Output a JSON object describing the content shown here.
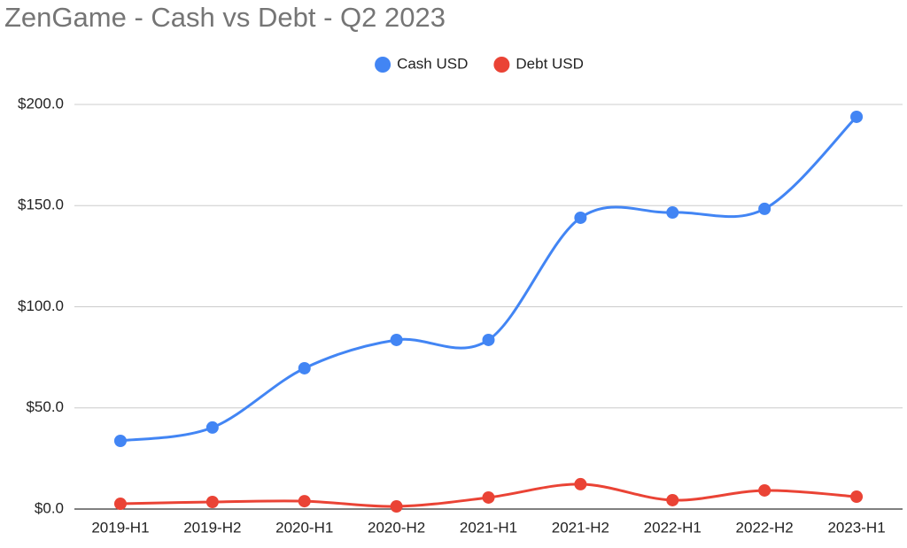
{
  "chart_data": {
    "type": "line",
    "title": "ZenGame  - Cash vs Debt - Q2 2023",
    "categories": [
      "2019-H1",
      "2019-H2",
      "2020-H1",
      "2020-H2",
      "2021-H1",
      "2021-H2",
      "2022-H1",
      "2022-H2",
      "2023-H1"
    ],
    "series": [
      {
        "name": "Cash USD",
        "color": "#4285f4",
        "values": [
          33.7,
          40.3,
          69.6,
          83.6,
          83.6,
          144.0,
          146.6,
          148.4,
          193.9
        ]
      },
      {
        "name": "Debt USD",
        "color": "#ea4335",
        "values": [
          2.6,
          3.5,
          3.9,
          1.3,
          5.7,
          12.3,
          4.4,
          9.2,
          6.1
        ]
      }
    ],
    "ylim": [
      0,
      200
    ],
    "yticks": [
      {
        "value": 0,
        "label": "$0.0"
      },
      {
        "value": 50,
        "label": "$50.0"
      },
      {
        "value": 100,
        "label": "$100.0"
      },
      {
        "value": 150,
        "label": "$150.0"
      },
      {
        "value": 200,
        "label": "$200.0"
      }
    ],
    "grid": true,
    "legend": "top",
    "smooth": true
  }
}
